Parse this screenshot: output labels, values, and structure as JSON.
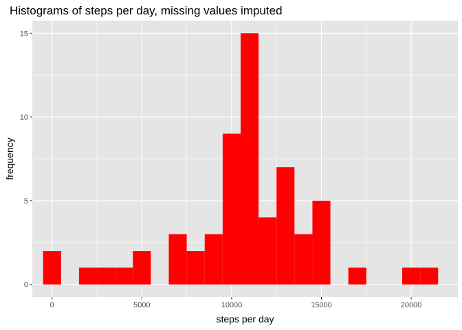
{
  "chart_data": {
    "type": "bar",
    "subtype": "histogram",
    "title": "Histograms of steps per day, missing values imputed",
    "xlabel": "steps per day",
    "ylabel": "frequency",
    "binwidth": 1000,
    "bins": [
      {
        "x": 0,
        "count": 2
      },
      {
        "x": 2000,
        "count": 1
      },
      {
        "x": 3000,
        "count": 1
      },
      {
        "x": 4000,
        "count": 1
      },
      {
        "x": 5000,
        "count": 2
      },
      {
        "x": 7000,
        "count": 3
      },
      {
        "x": 8000,
        "count": 2
      },
      {
        "x": 9000,
        "count": 3
      },
      {
        "x": 10000,
        "count": 9
      },
      {
        "x": 11000,
        "count": 15
      },
      {
        "x": 12000,
        "count": 4
      },
      {
        "x": 13000,
        "count": 7
      },
      {
        "x": 14000,
        "count": 3
      },
      {
        "x": 15000,
        "count": 5
      },
      {
        "x": 17000,
        "count": 1
      },
      {
        "x": 20000,
        "count": 1
      },
      {
        "x": 21000,
        "count": 1
      }
    ],
    "xlim": [
      -1100,
      22600
    ],
    "ylim": [
      -0.75,
      15.75
    ],
    "x_ticks": [
      0,
      5000,
      10000,
      15000,
      20000
    ],
    "x_tick_labels": [
      "0",
      "5000",
      "10000",
      "15000",
      "20000"
    ],
    "y_ticks": [
      0,
      5,
      10,
      15
    ],
    "y_tick_labels": [
      "0",
      "5",
      "10",
      "15"
    ],
    "bar_color": "#ff0000",
    "panel_background": "#e5e5e5",
    "grid_color": "#ffffff",
    "grid": true
  }
}
